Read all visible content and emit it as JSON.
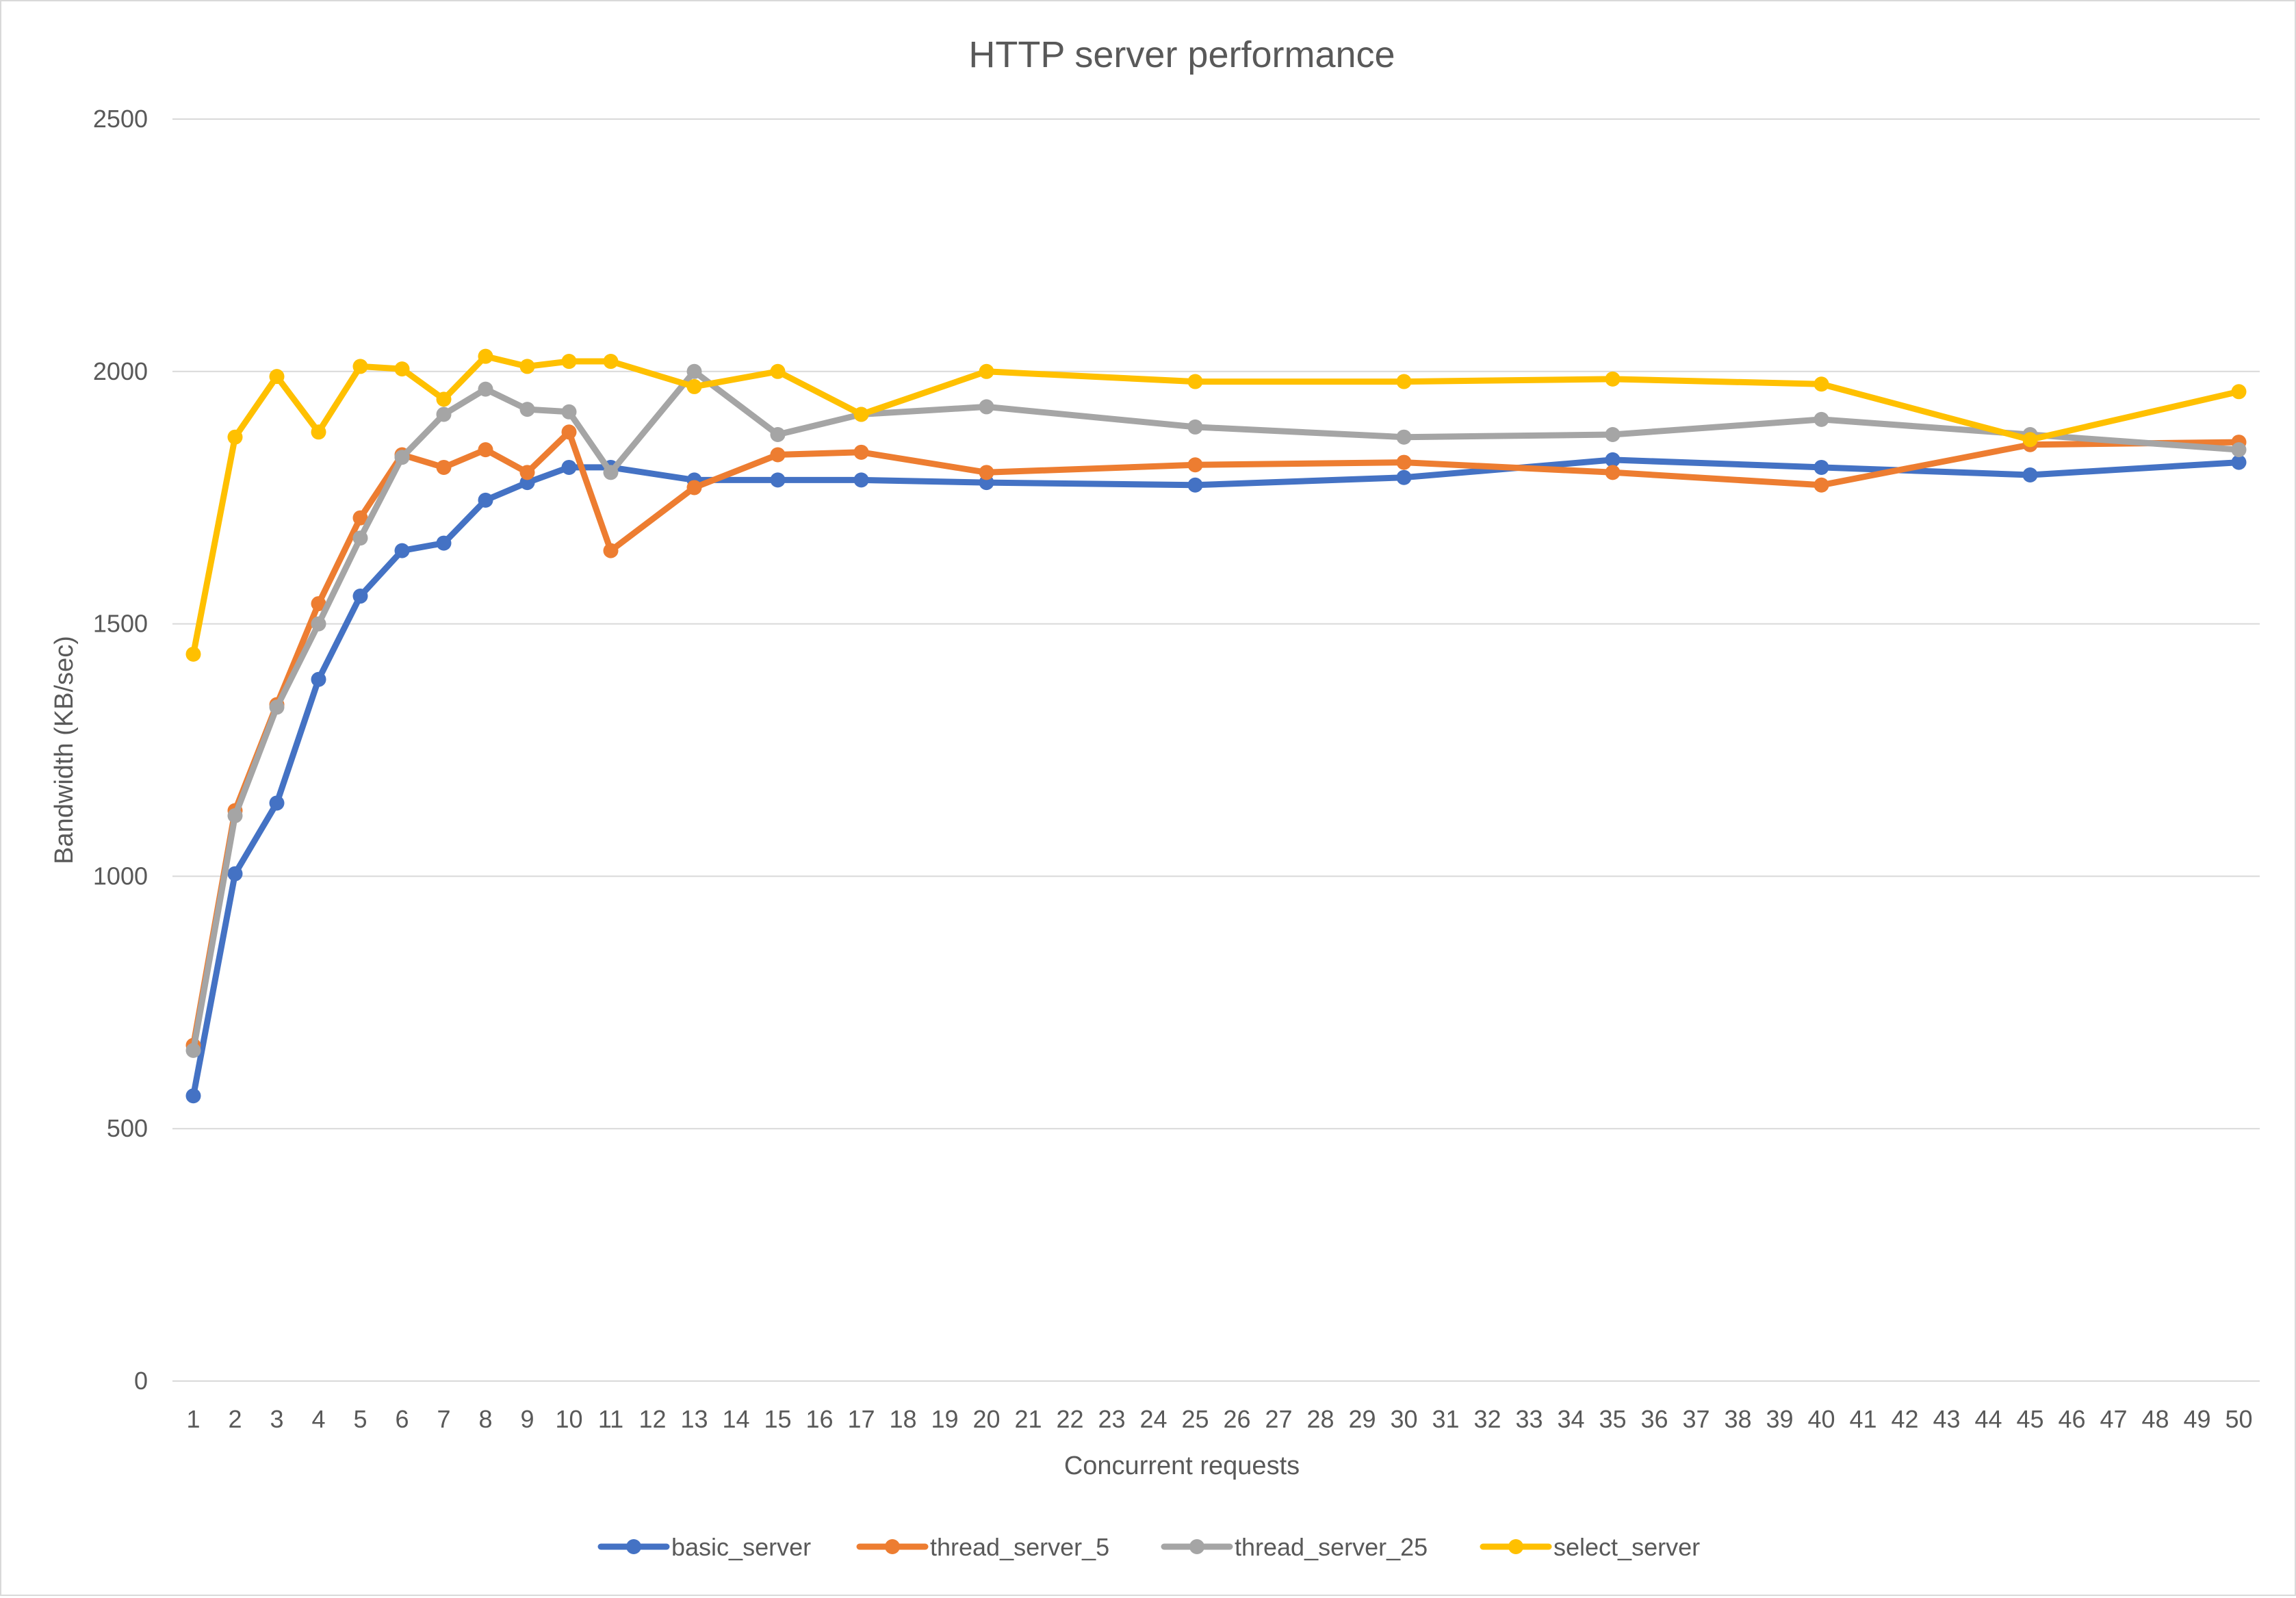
{
  "chart_data": {
    "type": "line",
    "title": "HTTP server performance",
    "xlabel": "Concurrent requests",
    "ylabel": "Bandwidth (KB/sec)",
    "ylim": [
      0,
      2500
    ],
    "yticks": [
      0,
      500,
      1000,
      1500,
      2000,
      2500
    ],
    "grid": true,
    "legend_position": "bottom",
    "categories": [
      "1",
      "2",
      "3",
      "4",
      "5",
      "6",
      "7",
      "8",
      "9",
      "10",
      "11",
      "12",
      "13",
      "14",
      "15",
      "16",
      "17",
      "18",
      "19",
      "20",
      "21",
      "22",
      "23",
      "24",
      "25",
      "26",
      "27",
      "28",
      "29",
      "30",
      "31",
      "32",
      "33",
      "34",
      "35",
      "36",
      "37",
      "38",
      "39",
      "40",
      "41",
      "42",
      "43",
      "44",
      "45",
      "46",
      "47",
      "48",
      "49",
      "50"
    ],
    "series": [
      {
        "name": "basic_server",
        "color": "#4472c4",
        "points": [
          [
            1,
            565
          ],
          [
            2,
            1005
          ],
          [
            3,
            1145
          ],
          [
            4,
            1390
          ],
          [
            5,
            1555
          ],
          [
            6,
            1645
          ],
          [
            7,
            1660
          ],
          [
            8,
            1745
          ],
          [
            9,
            1780
          ],
          [
            10,
            1810
          ],
          [
            11,
            1810
          ],
          [
            13,
            1785
          ],
          [
            15,
            1785
          ],
          [
            17,
            1785
          ],
          [
            20,
            1780
          ],
          [
            25,
            1775
          ],
          [
            30,
            1790
          ],
          [
            35,
            1825
          ],
          [
            40,
            1810
          ],
          [
            45,
            1795
          ],
          [
            50,
            1820
          ]
        ]
      },
      {
        "name": "thread_server_5",
        "color": "#ed7d31",
        "points": [
          [
            1,
            665
          ],
          [
            2,
            1130
          ],
          [
            3,
            1340
          ],
          [
            4,
            1540
          ],
          [
            5,
            1710
          ],
          [
            6,
            1835
          ],
          [
            7,
            1810
          ],
          [
            8,
            1845
          ],
          [
            9,
            1800
          ],
          [
            10,
            1880
          ],
          [
            11,
            1645
          ],
          [
            13,
            1770
          ],
          [
            15,
            1835
          ],
          [
            17,
            1840
          ],
          [
            20,
            1800
          ],
          [
            25,
            1815
          ],
          [
            30,
            1820
          ],
          [
            35,
            1800
          ],
          [
            40,
            1775
          ],
          [
            45,
            1855
          ],
          [
            50,
            1860
          ]
        ]
      },
      {
        "name": "thread_server_25",
        "color": "#a5a5a5",
        "points": [
          [
            1,
            655
          ],
          [
            2,
            1120
          ],
          [
            3,
            1335
          ],
          [
            4,
            1500
          ],
          [
            5,
            1670
          ],
          [
            6,
            1830
          ],
          [
            7,
            1915
          ],
          [
            8,
            1965
          ],
          [
            9,
            1925
          ],
          [
            10,
            1920
          ],
          [
            11,
            1800
          ],
          [
            13,
            2000
          ],
          [
            15,
            1875
          ],
          [
            17,
            1915
          ],
          [
            20,
            1930
          ],
          [
            25,
            1890
          ],
          [
            30,
            1870
          ],
          [
            35,
            1875
          ],
          [
            40,
            1905
          ],
          [
            45,
            1875
          ],
          [
            50,
            1845
          ]
        ]
      },
      {
        "name": "select_server",
        "color": "#ffc000",
        "points": [
          [
            1,
            1440
          ],
          [
            2,
            1870
          ],
          [
            3,
            1990
          ],
          [
            4,
            1880
          ],
          [
            5,
            2010
          ],
          [
            6,
            2005
          ],
          [
            7,
            1945
          ],
          [
            8,
            2030
          ],
          [
            9,
            2010
          ],
          [
            10,
            2020
          ],
          [
            11,
            2020
          ],
          [
            13,
            1970
          ],
          [
            15,
            2000
          ],
          [
            17,
            1915
          ],
          [
            20,
            2000
          ],
          [
            25,
            1980
          ],
          [
            30,
            1980
          ],
          [
            35,
            1985
          ],
          [
            40,
            1975
          ],
          [
            45,
            1865
          ],
          [
            50,
            1960
          ]
        ]
      }
    ]
  }
}
